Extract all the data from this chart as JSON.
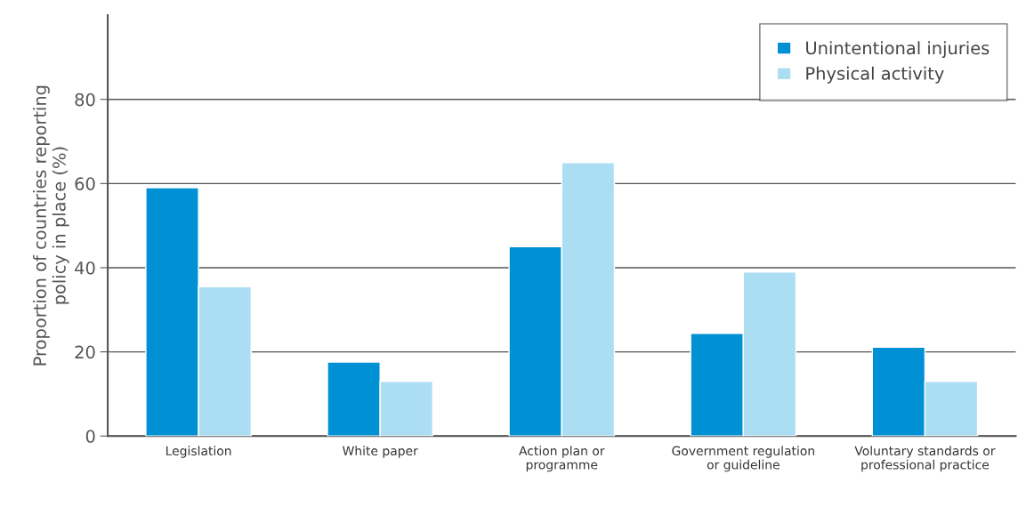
{
  "chart_data": {
    "type": "bar",
    "ylabel": "Proportion of countries reporting\npolicy in place (%)",
    "categories": [
      "Legislation",
      "White paper",
      "Action plan or\nprogramme",
      "Government regulation\nor guideline",
      "Voluntary standards or\nprofessional practice"
    ],
    "series": [
      {
        "name": "Unintentional injuries",
        "color": "#0090d4",
        "values": [
          59,
          17.6,
          45,
          24.4,
          21.1
        ]
      },
      {
        "name": "Physical activity",
        "color": "#abdef3",
        "values": [
          35.5,
          13,
          65,
          39,
          13
        ]
      }
    ],
    "ylim": [
      0,
      100
    ],
    "yticks": [
      0,
      20,
      40,
      60,
      80
    ],
    "grid": "y",
    "legend": "top right"
  }
}
